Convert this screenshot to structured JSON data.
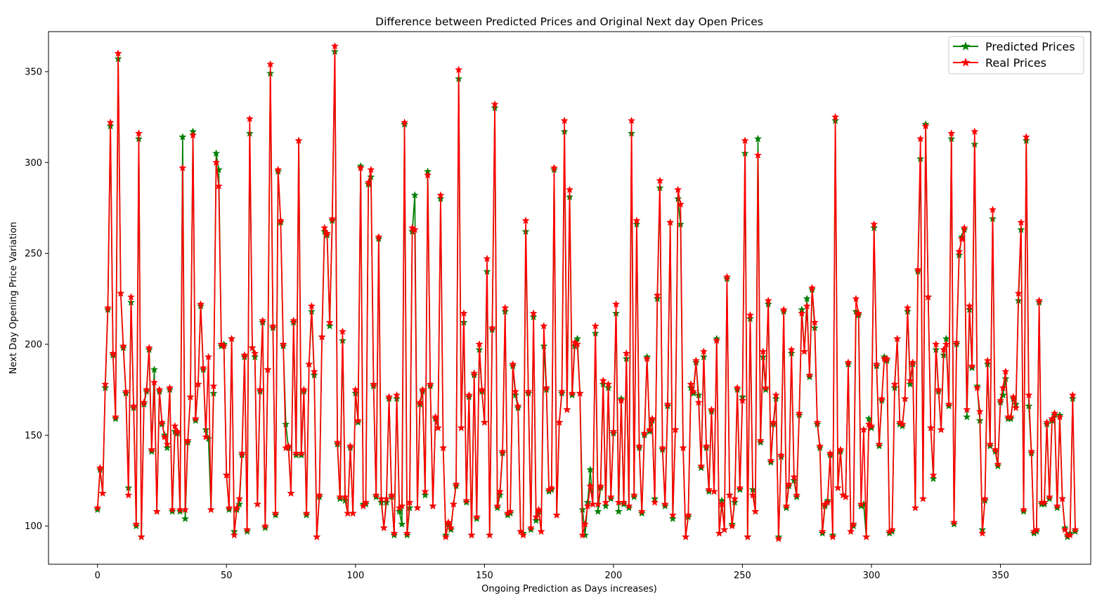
{
  "chart_data": {
    "type": "line",
    "title": "Difference between Predicted Prices and Original Next day Open Prices",
    "xlabel": "Ongoing Prediction as Days increases)",
    "ylabel": "Next Day Opening Price Variation",
    "xlim": [
      -19,
      385
    ],
    "ylim": [
      79,
      372
    ],
    "xticks": [
      0,
      50,
      100,
      150,
      200,
      250,
      300,
      350
    ],
    "yticks": [
      100,
      150,
      200,
      250,
      300,
      350
    ],
    "grid": false,
    "legend_position": "top-right",
    "marker": "star",
    "series": [
      {
        "name": "Predicted Prices",
        "color": "#008000",
        "x_start": 0,
        "values": [
          109,
          131,
          118,
          176,
          219,
          320,
          194,
          159,
          357,
          228,
          198,
          173,
          121,
          223,
          165,
          100,
          313,
          94,
          167,
          174,
          197,
          141,
          186,
          108,
          174,
          156,
          150,
          143,
          175,
          108,
          152,
          151,
          108,
          314,
          104,
          146,
          171,
          317,
          158,
          178,
          221,
          186,
          153,
          148,
          109,
          173,
          305,
          296,
          199,
          200,
          128,
          109,
          203,
          97,
          109,
          112,
          139,
          193,
          97,
          316,
          198,
          193,
          112,
          174,
          212,
          99,
          186,
          349,
          209,
          106,
          295,
          267,
          199,
          156,
          143,
          118,
          212,
          139,
          312,
          139,
          174,
          106,
          189,
          218,
          183,
          94,
          116,
          204,
          262,
          260,
          210,
          268,
          361,
          145,
          115,
          202,
          114,
          107,
          143,
          107,
          173,
          157,
          298,
          112,
          112,
          288,
          292,
          177,
          116,
          258,
          113,
          99,
          113,
          170,
          116,
          95,
          170,
          108,
          101,
          321,
          95,
          110,
          262,
          282,
          110,
          167,
          174,
          117,
          295,
          177,
          111,
          159,
          154,
          280,
          143,
          95,
          101,
          98,
          112,
          122,
          346,
          154,
          212,
          113,
          171,
          95,
          183,
          104,
          197,
          174,
          157,
          240,
          95,
          208,
          330,
          110,
          117,
          140,
          218,
          106,
          107,
          188,
          172,
          165,
          97,
          96,
          262,
          173,
          98,
          215,
          103,
          108,
          97,
          199,
          175,
          119,
          120,
          296,
          106,
          157,
          173,
          317,
          164,
          281,
          172,
          199,
          203,
          173,
          109,
          95,
          113,
          131,
          112,
          206,
          108,
          121,
          178,
          111,
          176,
          115,
          151,
          217,
          108,
          170,
          112,
          192,
          110,
          316,
          116,
          266,
          143,
          107,
          150,
          193,
          152,
          158,
          115,
          225,
          286,
          142,
          111,
          166,
          267,
          104,
          153,
          280,
          266,
          143,
          94,
          105,
          176,
          173,
          190,
          172,
          132,
          193,
          143,
          119,
          163,
          119,
          203,
          96,
          114,
          98,
          236,
          117,
          101,
          113,
          175,
          120,
          171,
          305,
          94,
          214,
          120,
          108,
          313,
          146,
          193,
          175,
          222,
          135,
          156,
          170,
          94,
          138,
          218,
          110,
          122,
          195,
          125,
          116,
          161,
          219,
          196,
          225,
          182,
          230,
          209,
          156,
          143,
          96,
          111,
          114,
          139,
          95,
          323,
          121,
          141,
          117,
          116,
          189,
          97,
          100,
          218,
          216,
          111,
          112,
          94,
          159,
          154,
          264,
          188,
          144,
          169,
          193,
          191,
          96,
          97,
          176,
          203,
          156,
          155,
          170,
          218,
          178,
          189,
          110,
          240,
          302,
          115,
          321,
          226,
          154,
          126,
          197,
          174,
          153,
          194,
          203,
          166,
          313,
          101,
          200,
          249,
          259,
          263,
          160,
          219,
          187,
          310,
          177,
          158,
          98,
          114,
          189,
          144,
          269,
          141,
          133,
          168,
          172,
          181,
          159,
          159,
          170,
          167,
          224,
          263,
          108,
          312,
          166,
          140,
          96,
          97,
          223,
          112,
          112,
          156,
          115,
          158,
          161,
          110,
          161,
          115,
          99,
          94,
          96,
          170,
          97
        ]
      },
      {
        "name": "Real Prices",
        "color": "#ff0000",
        "x_start": 0,
        "values": [
          110,
          132,
          118,
          178,
          220,
          322,
          195,
          160,
          360,
          228,
          199,
          174,
          117,
          226,
          166,
          101,
          316,
          94,
          168,
          175,
          198,
          142,
          179,
          108,
          175,
          157,
          149,
          145,
          176,
          109,
          155,
          152,
          109,
          297,
          109,
          147,
          171,
          315,
          159,
          178,
          222,
          187,
          149,
          193,
          109,
          177,
          300,
          287,
          200,
          199,
          128,
          110,
          203,
          95,
          110,
          115,
          140,
          194,
          98,
          324,
          198,
          195,
          112,
          175,
          213,
          100,
          186,
          354,
          210,
          107,
          296,
          268,
          200,
          143,
          144,
          118,
          213,
          140,
          312,
          140,
          175,
          107,
          189,
          221,
          185,
          94,
          117,
          204,
          264,
          261,
          212,
          269,
          364,
          146,
          116,
          207,
          116,
          107,
          144,
          107,
          175,
          158,
          297,
          111,
          113,
          289,
          296,
          178,
          117,
          259,
          115,
          99,
          115,
          171,
          117,
          96,
          172,
          110,
          111,
          322,
          96,
          113,
          264,
          263,
          110,
          168,
          175,
          119,
          293,
          178,
          111,
          160,
          154,
          282,
          143,
          94,
          102,
          99,
          112,
          123,
          351,
          154,
          217,
          114,
          172,
          95,
          184,
          105,
          200,
          175,
          157,
          247,
          95,
          209,
          332,
          111,
          119,
          141,
          220,
          107,
          108,
          189,
          174,
          166,
          97,
          95,
          268,
          174,
          99,
          217,
          105,
          109,
          97,
          210,
          176,
          120,
          121,
          297,
          106,
          157,
          174,
          323,
          164,
          285,
          173,
          201,
          200,
          173,
          95,
          101,
          111,
          122,
          112,
          210,
          112,
          122,
          180,
          113,
          178,
          116,
          152,
          222,
          113,
          169,
          113,
          195,
          111,
          323,
          117,
          268,
          144,
          108,
          151,
          192,
          153,
          159,
          113,
          227,
          290,
          143,
          112,
          167,
          267,
          106,
          153,
          285,
          277,
          143,
          94,
          106,
          178,
          174,
          191,
          168,
          133,
          196,
          144,
          120,
          164,
          119,
          202,
          96,
          112,
          98,
          237,
          117,
          100,
          115,
          176,
          121,
          169,
          312,
          94,
          216,
          117,
          108,
          304,
          147,
          196,
          176,
          224,
          136,
          157,
          172,
          93,
          139,
          219,
          111,
          123,
          197,
          127,
          117,
          162,
          217,
          196,
          221,
          183,
          231,
          212,
          157,
          144,
          97,
          112,
          113,
          140,
          94,
          325,
          121,
          142,
          117,
          116,
          190,
          97,
          101,
          225,
          217,
          112,
          153,
          94,
          156,
          155,
          266,
          189,
          145,
          170,
          192,
          192,
          97,
          98,
          178,
          203,
          157,
          156,
          170,
          220,
          180,
          190,
          110,
          241,
          313,
          115,
          320,
          226,
          154,
          128,
          200,
          175,
          153,
          197,
          200,
          167,
          316,
          102,
          201,
          251,
          258,
          264,
          164,
          221,
          188,
          317,
          176,
          163,
          96,
          115,
          191,
          145,
          274,
          142,
          134,
          169,
          176,
          185,
          160,
          160,
          171,
          165,
          228,
          267,
          109,
          314,
          172,
          141,
          97,
          98,
          224,
          113,
          113,
          157,
          116,
          159,
          162,
          111,
          160,
          115,
          98,
          95,
          95,
          172,
          98
        ]
      }
    ]
  }
}
